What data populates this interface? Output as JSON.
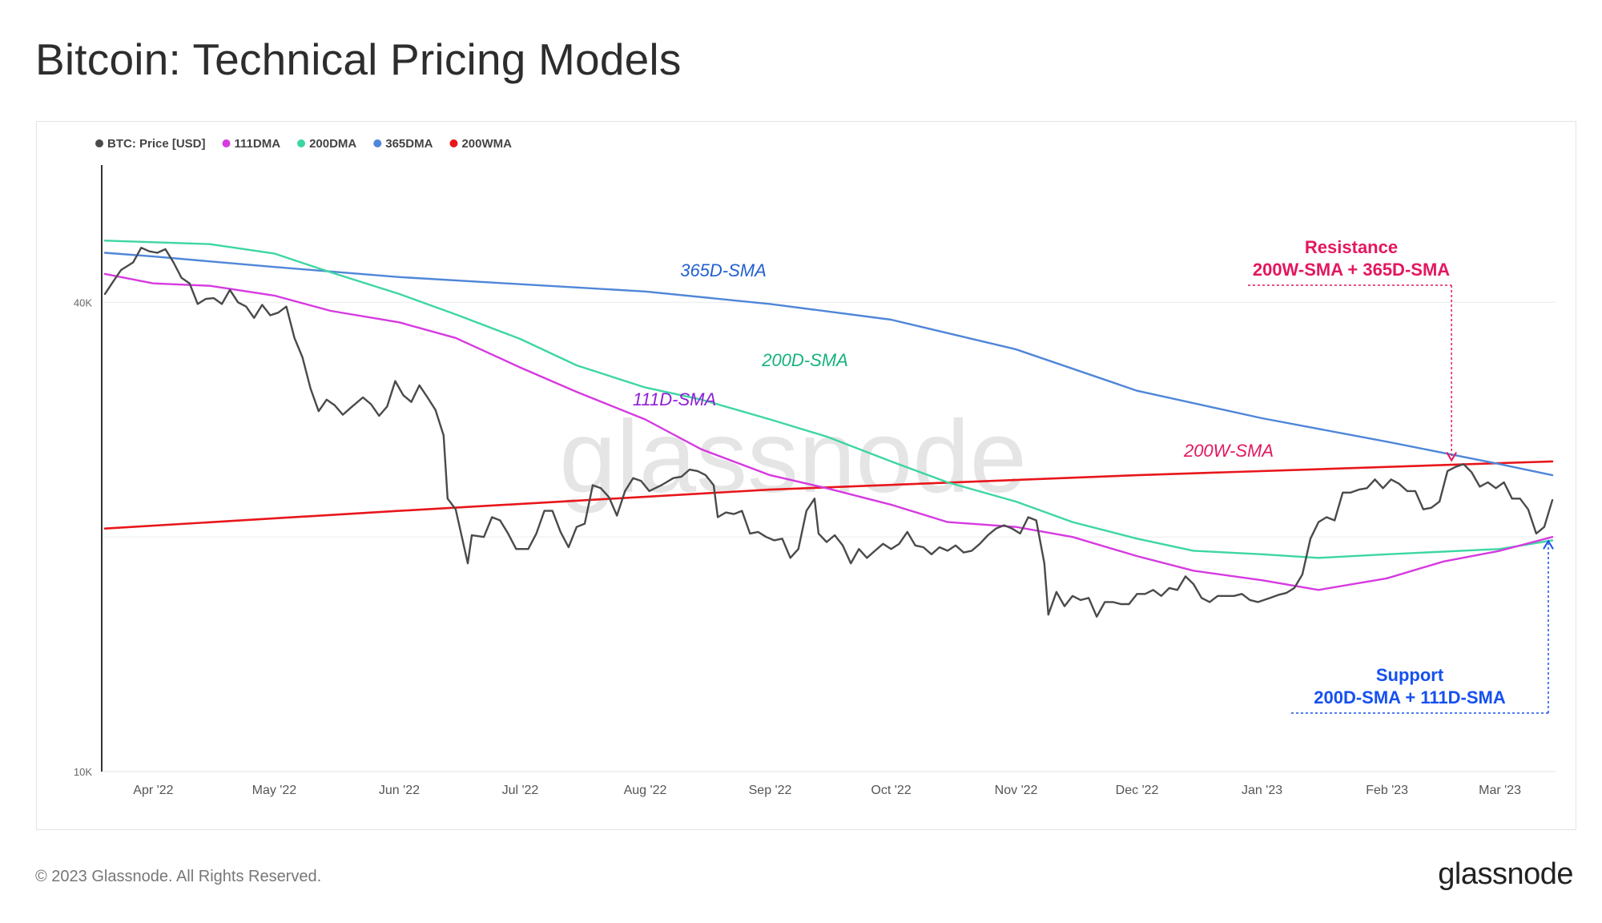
{
  "title": "Bitcoin: Technical Pricing Models",
  "footer": {
    "copyright": "© 2023 Glassnode. All Rights Reserved.",
    "brand": "glassnode"
  },
  "watermark": "glassnode",
  "colors": {
    "price": "#4a4a4a",
    "dma111": "#d63ae0",
    "dma200": "#3dd6a2",
    "dma365": "#4f86d9",
    "wma200": "#e8161b",
    "resistance": "#e3175f",
    "support": "#1550f0",
    "label111": "#8e1fd6",
    "label200": "#17b27e",
    "label365": "#2460d1"
  },
  "chart_data": {
    "type": "line",
    "yscale": "log",
    "ylim": [
      10000,
      60000
    ],
    "xlim": [
      "2022-03-20",
      "2023-03-14"
    ],
    "x_ticks": [
      {
        "date": "2022-04-01",
        "label": "Apr '22"
      },
      {
        "date": "2022-05-01",
        "label": "May '22"
      },
      {
        "date": "2022-06-01",
        "label": "Jun '22"
      },
      {
        "date": "2022-07-01",
        "label": "Jul '22"
      },
      {
        "date": "2022-08-01",
        "label": "Aug '22"
      },
      {
        "date": "2022-09-01",
        "label": "Sep '22"
      },
      {
        "date": "2022-10-01",
        "label": "Oct '22"
      },
      {
        "date": "2022-11-01",
        "label": "Nov '22"
      },
      {
        "date": "2022-12-01",
        "label": "Dec '22"
      },
      {
        "date": "2023-01-01",
        "label": "Jan '23"
      },
      {
        "date": "2023-02-01",
        "label": "Feb '23"
      },
      {
        "date": "2023-03-01",
        "label": "Mar '23"
      }
    ],
    "y_ticks": [
      {
        "value": 10000,
        "label": "10K"
      },
      {
        "value": 40000,
        "label": "40K"
      }
    ],
    "gridlines": [
      20000,
      40000
    ],
    "legend": {
      "position": "top-left",
      "items": [
        "BTC: Price [USD]",
        "111DMA",
        "200DMA",
        "365DMA",
        "200WMA"
      ]
    },
    "series": [
      {
        "name": "BTC: Price [USD]",
        "points": [
          [
            "2022-03-20",
            41000
          ],
          [
            "2022-03-22",
            42500
          ],
          [
            "2022-03-24",
            44000
          ],
          [
            "2022-03-27",
            45000
          ],
          [
            "2022-03-29",
            47000
          ],
          [
            "2022-03-31",
            46500
          ],
          [
            "2022-04-02",
            46300
          ],
          [
            "2022-04-04",
            46800
          ],
          [
            "2022-04-06",
            45000
          ],
          [
            "2022-04-08",
            43000
          ],
          [
            "2022-04-10",
            42300
          ],
          [
            "2022-04-12",
            39800
          ],
          [
            "2022-04-14",
            40400
          ],
          [
            "2022-04-16",
            40500
          ],
          [
            "2022-04-18",
            39800
          ],
          [
            "2022-04-20",
            41500
          ],
          [
            "2022-04-22",
            40000
          ],
          [
            "2022-04-24",
            39500
          ],
          [
            "2022-04-26",
            38200
          ],
          [
            "2022-04-28",
            39700
          ],
          [
            "2022-04-30",
            38500
          ],
          [
            "2022-05-02",
            38800
          ],
          [
            "2022-05-04",
            39500
          ],
          [
            "2022-05-06",
            36000
          ],
          [
            "2022-05-08",
            34000
          ],
          [
            "2022-05-10",
            31000
          ],
          [
            "2022-05-12",
            29000
          ],
          [
            "2022-05-14",
            30000
          ],
          [
            "2022-05-16",
            29500
          ],
          [
            "2022-05-18",
            28700
          ],
          [
            "2022-05-20",
            29300
          ],
          [
            "2022-05-23",
            30200
          ],
          [
            "2022-05-25",
            29600
          ],
          [
            "2022-05-27",
            28600
          ],
          [
            "2022-05-29",
            29400
          ],
          [
            "2022-05-31",
            31700
          ],
          [
            "2022-06-02",
            30400
          ],
          [
            "2022-06-04",
            29800
          ],
          [
            "2022-06-06",
            31300
          ],
          [
            "2022-06-08",
            30200
          ],
          [
            "2022-06-10",
            29100
          ],
          [
            "2022-06-12",
            27000
          ],
          [
            "2022-06-13",
            22400
          ],
          [
            "2022-06-15",
            21700
          ],
          [
            "2022-06-18",
            18500
          ],
          [
            "2022-06-19",
            20100
          ],
          [
            "2022-06-22",
            20000
          ],
          [
            "2022-06-24",
            21200
          ],
          [
            "2022-06-26",
            21000
          ],
          [
            "2022-06-28",
            20200
          ],
          [
            "2022-06-30",
            19300
          ],
          [
            "2022-07-03",
            19300
          ],
          [
            "2022-07-05",
            20200
          ],
          [
            "2022-07-07",
            21600
          ],
          [
            "2022-07-09",
            21600
          ],
          [
            "2022-07-11",
            20300
          ],
          [
            "2022-07-13",
            19400
          ],
          [
            "2022-07-15",
            20600
          ],
          [
            "2022-07-17",
            20800
          ],
          [
            "2022-07-19",
            23300
          ],
          [
            "2022-07-21",
            23100
          ],
          [
            "2022-07-23",
            22500
          ],
          [
            "2022-07-25",
            21300
          ],
          [
            "2022-07-27",
            22900
          ],
          [
            "2022-07-29",
            23800
          ],
          [
            "2022-07-31",
            23600
          ],
          [
            "2022-08-02",
            22900
          ],
          [
            "2022-08-05",
            23300
          ],
          [
            "2022-08-08",
            23800
          ],
          [
            "2022-08-10",
            23900
          ],
          [
            "2022-08-12",
            24400
          ],
          [
            "2022-08-14",
            24300
          ],
          [
            "2022-08-16",
            24000
          ],
          [
            "2022-08-18",
            23300
          ],
          [
            "2022-08-19",
            21200
          ],
          [
            "2022-08-21",
            21500
          ],
          [
            "2022-08-23",
            21400
          ],
          [
            "2022-08-25",
            21600
          ],
          [
            "2022-08-27",
            20200
          ],
          [
            "2022-08-29",
            20300
          ],
          [
            "2022-08-31",
            20000
          ],
          [
            "2022-09-02",
            19800
          ],
          [
            "2022-09-04",
            19900
          ],
          [
            "2022-09-06",
            18800
          ],
          [
            "2022-09-08",
            19300
          ],
          [
            "2022-09-10",
            21600
          ],
          [
            "2022-09-12",
            22400
          ],
          [
            "2022-09-13",
            20200
          ],
          [
            "2022-09-15",
            19700
          ],
          [
            "2022-09-17",
            20100
          ],
          [
            "2022-09-19",
            19500
          ],
          [
            "2022-09-21",
            18500
          ],
          [
            "2022-09-23",
            19300
          ],
          [
            "2022-09-25",
            18800
          ],
          [
            "2022-09-27",
            19200
          ],
          [
            "2022-09-29",
            19600
          ],
          [
            "2022-10-01",
            19300
          ],
          [
            "2022-10-03",
            19600
          ],
          [
            "2022-10-05",
            20300
          ],
          [
            "2022-10-07",
            19500
          ],
          [
            "2022-10-09",
            19400
          ],
          [
            "2022-10-11",
            19000
          ],
          [
            "2022-10-13",
            19400
          ],
          [
            "2022-10-15",
            19200
          ],
          [
            "2022-10-17",
            19500
          ],
          [
            "2022-10-19",
            19100
          ],
          [
            "2022-10-21",
            19200
          ],
          [
            "2022-10-23",
            19600
          ],
          [
            "2022-10-25",
            20100
          ],
          [
            "2022-10-27",
            20500
          ],
          [
            "2022-10-29",
            20700
          ],
          [
            "2022-10-31",
            20500
          ],
          [
            "2022-11-02",
            20200
          ],
          [
            "2022-11-04",
            21200
          ],
          [
            "2022-11-06",
            21000
          ],
          [
            "2022-11-08",
            18500
          ],
          [
            "2022-11-09",
            15900
          ],
          [
            "2022-11-11",
            17000
          ],
          [
            "2022-11-13",
            16300
          ],
          [
            "2022-11-15",
            16800
          ],
          [
            "2022-11-17",
            16600
          ],
          [
            "2022-11-19",
            16700
          ],
          [
            "2022-11-21",
            15800
          ],
          [
            "2022-11-23",
            16500
          ],
          [
            "2022-11-25",
            16500
          ],
          [
            "2022-11-27",
            16400
          ],
          [
            "2022-11-29",
            16400
          ],
          [
            "2022-12-01",
            16900
          ],
          [
            "2022-12-03",
            16900
          ],
          [
            "2022-12-05",
            17100
          ],
          [
            "2022-12-07",
            16800
          ],
          [
            "2022-12-09",
            17200
          ],
          [
            "2022-12-11",
            17100
          ],
          [
            "2022-12-13",
            17800
          ],
          [
            "2022-12-15",
            17400
          ],
          [
            "2022-12-17",
            16700
          ],
          [
            "2022-12-19",
            16500
          ],
          [
            "2022-12-21",
            16800
          ],
          [
            "2022-12-23",
            16800
          ],
          [
            "2022-12-25",
            16800
          ],
          [
            "2022-12-27",
            16900
          ],
          [
            "2022-12-29",
            16600
          ],
          [
            "2022-12-31",
            16500
          ],
          [
            "2023-01-03",
            16700
          ],
          [
            "2023-01-05",
            16850
          ],
          [
            "2023-01-07",
            16950
          ],
          [
            "2023-01-09",
            17200
          ],
          [
            "2023-01-11",
            17900
          ],
          [
            "2023-01-13",
            19900
          ],
          [
            "2023-01-15",
            20900
          ],
          [
            "2023-01-17",
            21200
          ],
          [
            "2023-01-19",
            21000
          ],
          [
            "2023-01-21",
            22800
          ],
          [
            "2023-01-23",
            22800
          ],
          [
            "2023-01-25",
            23000
          ],
          [
            "2023-01-27",
            23100
          ],
          [
            "2023-01-29",
            23700
          ],
          [
            "2023-01-31",
            23100
          ],
          [
            "2023-02-02",
            23700
          ],
          [
            "2023-02-04",
            23400
          ],
          [
            "2023-02-06",
            22900
          ],
          [
            "2023-02-08",
            22900
          ],
          [
            "2023-02-10",
            21700
          ],
          [
            "2023-02-12",
            21800
          ],
          [
            "2023-02-14",
            22200
          ],
          [
            "2023-02-16",
            24300
          ],
          [
            "2023-02-18",
            24600
          ],
          [
            "2023-02-20",
            24800
          ],
          [
            "2023-02-22",
            24200
          ],
          [
            "2023-02-24",
            23200
          ],
          [
            "2023-02-26",
            23500
          ],
          [
            "2023-02-28",
            23100
          ],
          [
            "2023-03-02",
            23500
          ],
          [
            "2023-03-04",
            22400
          ],
          [
            "2023-03-06",
            22400
          ],
          [
            "2023-03-08",
            21700
          ],
          [
            "2023-03-10",
            20200
          ],
          [
            "2023-03-12",
            20600
          ],
          [
            "2023-03-14",
            22300
          ]
        ]
      },
      {
        "name": "111DMA",
        "points": [
          [
            "2022-03-20",
            43500
          ],
          [
            "2022-04-01",
            42300
          ],
          [
            "2022-04-15",
            42000
          ],
          [
            "2022-05-01",
            40800
          ],
          [
            "2022-05-15",
            39000
          ],
          [
            "2022-06-01",
            37700
          ],
          [
            "2022-06-15",
            36000
          ],
          [
            "2022-07-01",
            33000
          ],
          [
            "2022-07-15",
            30700
          ],
          [
            "2022-08-01",
            28300
          ],
          [
            "2022-08-15",
            25900
          ],
          [
            "2022-09-01",
            24000
          ],
          [
            "2022-09-15",
            23100
          ],
          [
            "2022-10-01",
            22000
          ],
          [
            "2022-10-15",
            20900
          ],
          [
            "2022-11-01",
            20600
          ],
          [
            "2022-11-15",
            20000
          ],
          [
            "2022-12-01",
            18900
          ],
          [
            "2022-12-15",
            18100
          ],
          [
            "2023-01-01",
            17600
          ],
          [
            "2023-01-15",
            17100
          ],
          [
            "2023-02-01",
            17700
          ],
          [
            "2023-02-15",
            18600
          ],
          [
            "2023-03-01",
            19200
          ],
          [
            "2023-03-14",
            20000
          ]
        ]
      },
      {
        "name": "200DMA",
        "points": [
          [
            "2022-03-20",
            48000
          ],
          [
            "2022-04-15",
            47500
          ],
          [
            "2022-05-01",
            46200
          ],
          [
            "2022-05-15",
            43700
          ],
          [
            "2022-06-01",
            41000
          ],
          [
            "2022-06-15",
            38600
          ],
          [
            "2022-07-01",
            35900
          ],
          [
            "2022-07-15",
            33200
          ],
          [
            "2022-08-01",
            31100
          ],
          [
            "2022-08-15",
            30000
          ],
          [
            "2022-09-01",
            28300
          ],
          [
            "2022-09-15",
            26900
          ],
          [
            "2022-10-01",
            25000
          ],
          [
            "2022-10-15",
            23500
          ],
          [
            "2022-11-01",
            22200
          ],
          [
            "2022-11-15",
            20900
          ],
          [
            "2022-12-01",
            19900
          ],
          [
            "2022-12-15",
            19200
          ],
          [
            "2023-01-01",
            19000
          ],
          [
            "2023-01-15",
            18800
          ],
          [
            "2023-02-01",
            19000
          ],
          [
            "2023-03-01",
            19300
          ],
          [
            "2023-03-14",
            19800
          ]
        ]
      },
      {
        "name": "365DMA",
        "points": [
          [
            "2022-03-20",
            46300
          ],
          [
            "2022-04-01",
            45800
          ],
          [
            "2022-05-01",
            44400
          ],
          [
            "2022-06-01",
            43100
          ],
          [
            "2022-07-01",
            42200
          ],
          [
            "2022-08-01",
            41300
          ],
          [
            "2022-09-01",
            39800
          ],
          [
            "2022-10-01",
            38000
          ],
          [
            "2022-11-01",
            34800
          ],
          [
            "2022-12-01",
            30800
          ],
          [
            "2023-01-01",
            28400
          ],
          [
            "2023-02-01",
            26500
          ],
          [
            "2023-03-01",
            24800
          ],
          [
            "2023-03-14",
            24000
          ]
        ]
      },
      {
        "name": "200WMA",
        "points": [
          [
            "2022-03-20",
            20500
          ],
          [
            "2022-06-01",
            21600
          ],
          [
            "2022-09-01",
            23000
          ],
          [
            "2022-12-01",
            24000
          ],
          [
            "2023-03-14",
            25000
          ]
        ]
      }
    ],
    "annotations": [
      {
        "text": "365D-SMA",
        "color_key": "label365"
      },
      {
        "text": "200D-SMA",
        "color_key": "label200"
      },
      {
        "text": "111D-SMA",
        "color_key": "label111"
      },
      {
        "text": "200W-SMA",
        "color_key": "resistance"
      },
      {
        "title": "Resistance",
        "text": "200W-SMA + 365D-SMA",
        "at_date": "2023-02-17",
        "at_value": 24900
      },
      {
        "title": "Support",
        "text": "200D-SMA + 111D-SMA",
        "at_date": "2023-03-13",
        "at_value": 19900
      }
    ]
  }
}
